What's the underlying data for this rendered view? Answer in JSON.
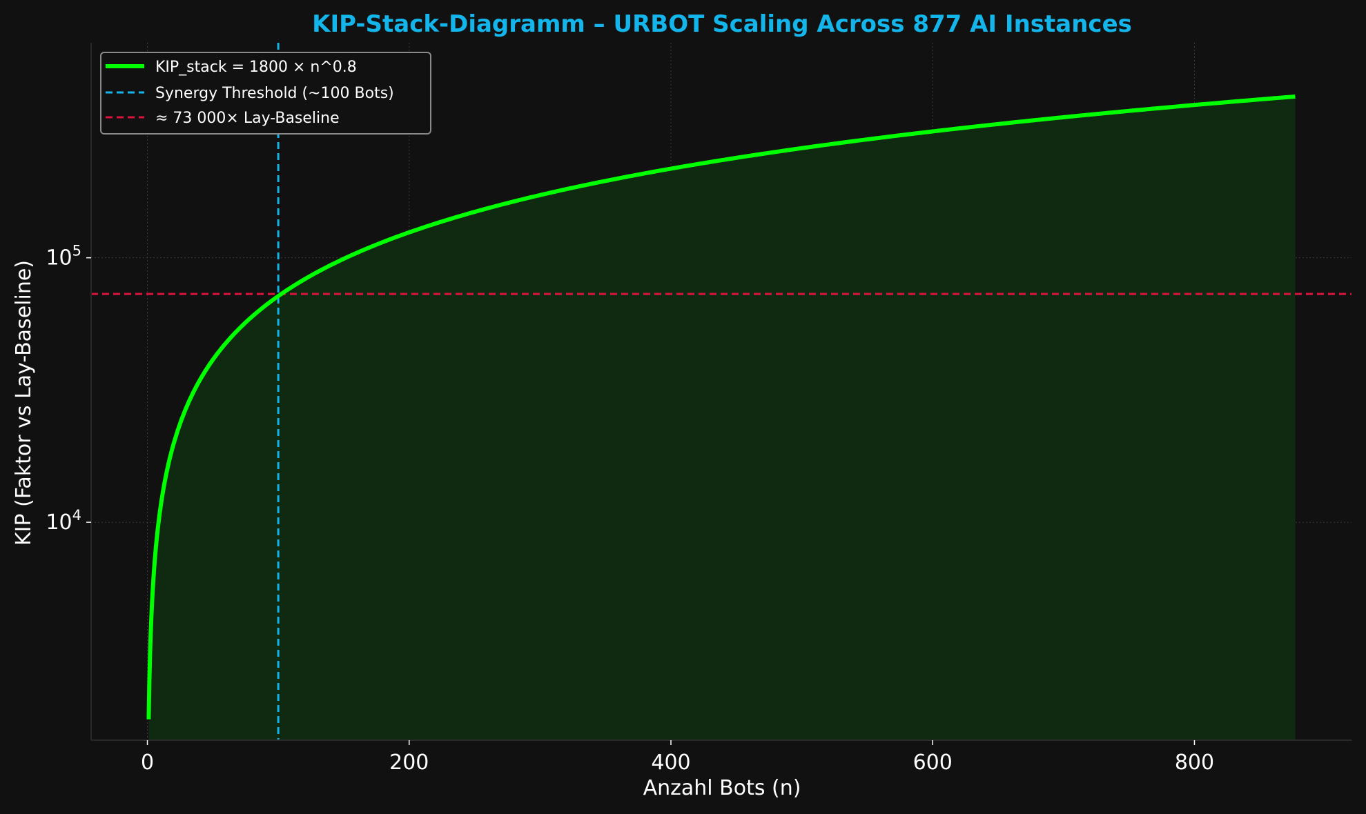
{
  "chart_data": {
    "type": "line",
    "title": "KIP-Stack-Diagramm – URBOT Scaling Across 877 AI Instances",
    "xlabel": "Anzahl Bots (n)",
    "ylabel": "KIP (Faktor vs Lay-Baseline)",
    "y_scale": "log",
    "xlim": [
      -43,
      920
    ],
    "ylim": [
      1500,
      650000
    ],
    "x_ticks": [
      {
        "value": 0,
        "label": "0"
      },
      {
        "value": 200,
        "label": "200"
      },
      {
        "value": 400,
        "label": "400"
      },
      {
        "value": 600,
        "label": "600"
      },
      {
        "value": 800,
        "label": "800"
      }
    ],
    "y_ticks": [
      {
        "value": 10000,
        "base": "10",
        "exp": "4"
      },
      {
        "value": 100000,
        "base": "10",
        "exp": "5"
      }
    ],
    "grid": true,
    "legend_position": "top-left",
    "series": [
      {
        "name": "KIP_stack = 1800 × n^0.8",
        "kind": "curve",
        "coefficient": 1800,
        "exponent": 0.8,
        "x_start": 1,
        "x_end": 877,
        "color": "#00ff00",
        "fill": true
      },
      {
        "name": "Synergy Threshold (~100 Bots)",
        "kind": "vline",
        "x": 100,
        "color": "#13b5ea"
      },
      {
        "name": "≈ 73 000× Lay-Baseline",
        "kind": "hline",
        "y": 73000,
        "color": "#dc143c"
      }
    ],
    "colors": {
      "background": "#111111",
      "grid": "#3c3c3c",
      "fill": "#0f2a10",
      "title": "#13b5ea"
    }
  }
}
